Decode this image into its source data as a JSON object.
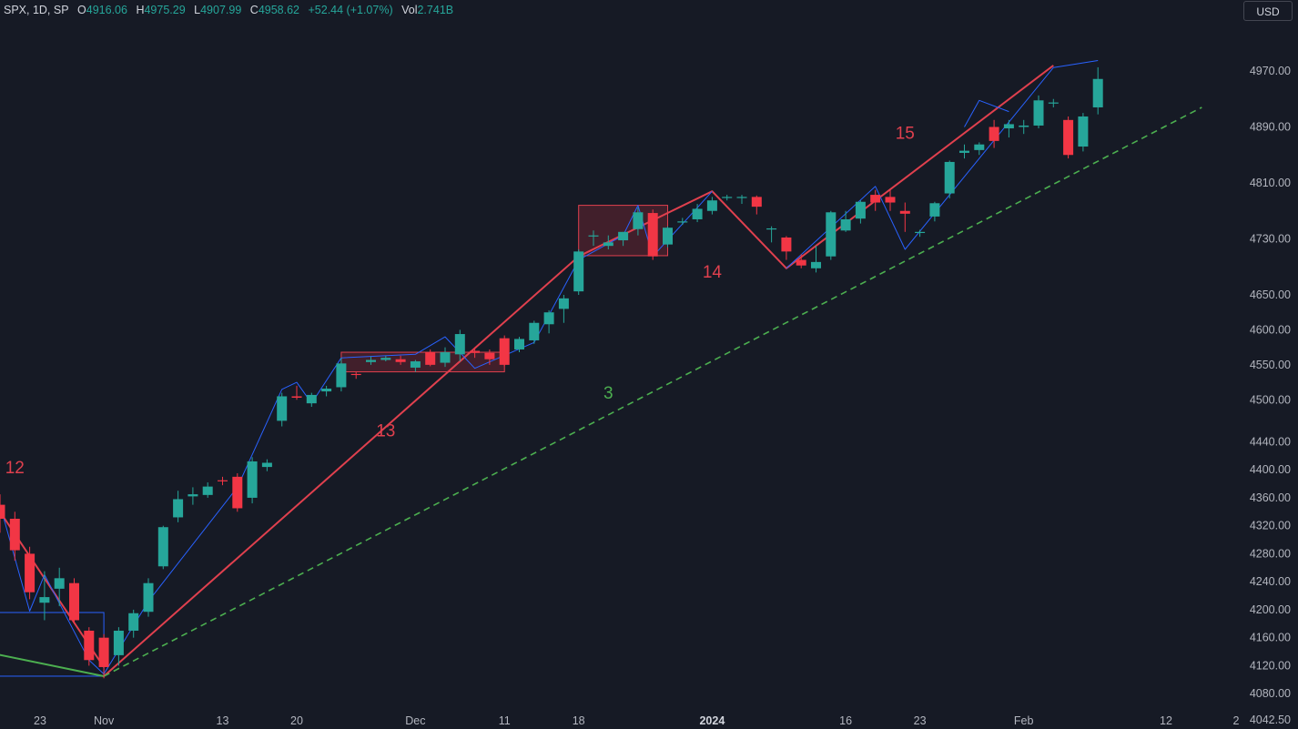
{
  "header": {
    "symbol_line": "SPX, 1D, SP",
    "open_label": "O",
    "open_value": "4916.06",
    "high_label": "H",
    "high_value": "4975.29",
    "low_label": "L",
    "low_value": "4907.99",
    "close_label": "C",
    "close_value": "4958.62",
    "change": "+52.44 (+1.07%)",
    "vol_label": "Vol",
    "vol_value": "2.741B",
    "currency_button": "USD"
  },
  "colors": {
    "background": "#161a25",
    "up": "#26a69a",
    "down": "#f23645",
    "trend_red": "#e0404e",
    "trend_blue": "#2962ff",
    "trend_green": "#4caf50",
    "text": "#b2b5be"
  },
  "chart_data": {
    "type": "candlestick",
    "title": "SPX, 1D, SP",
    "ylim": [
      4030,
      5000
    ],
    "y_ticks": [
      {
        "label": "4970.00",
        "v": 4970
      },
      {
        "label": "4890.00",
        "v": 4890
      },
      {
        "label": "4810.00",
        "v": 4810
      },
      {
        "label": "4730.00",
        "v": 4730
      },
      {
        "label": "4650.00",
        "v": 4650
      },
      {
        "label": "4600.00",
        "v": 4600
      },
      {
        "label": "4550.00",
        "v": 4550
      },
      {
        "label": "4500.00",
        "v": 4500
      },
      {
        "label": "4440.00",
        "v": 4440
      },
      {
        "label": "4400.00",
        "v": 4400
      },
      {
        "label": "4360.00",
        "v": 4360
      },
      {
        "label": "4320.00",
        "v": 4320
      },
      {
        "label": "4280.00",
        "v": 4280
      },
      {
        "label": "4240.00",
        "v": 4240
      },
      {
        "label": "4200.00",
        "v": 4200
      },
      {
        "label": "4160.00",
        "v": 4160
      },
      {
        "label": "4120.00",
        "v": 4120
      },
      {
        "label": "4080.00",
        "v": 4080
      },
      {
        "label": "4042.50",
        "v": 4042.5
      }
    ],
    "x_ticks": [
      {
        "label": "23",
        "i": 0
      },
      {
        "label": "Nov",
        "i": 7
      },
      {
        "label": "13",
        "i": 15
      },
      {
        "label": "20",
        "i": 20
      },
      {
        "label": "Dec",
        "i": 28
      },
      {
        "label": "11",
        "i": 34
      },
      {
        "label": "18",
        "i": 39
      },
      {
        "label": "2024",
        "i": 48,
        "bold": true
      },
      {
        "label": "16",
        "i": 57
      },
      {
        "label": "23",
        "i": 62
      },
      {
        "label": "Feb",
        "i": 69
      },
      {
        "label": "12",
        "i": 76
      },
      {
        "label": "2",
        "i": 81
      }
    ],
    "candles": [
      {
        "o": 4350,
        "h": 4365,
        "l": 4310,
        "c": 4330
      },
      {
        "o": 4330,
        "h": 4340,
        "l": 4270,
        "c": 4285
      },
      {
        "o": 4280,
        "h": 4290,
        "l": 4215,
        "c": 4225
      },
      {
        "o": 4210,
        "h": 4255,
        "l": 4185,
        "c": 4218
      },
      {
        "o": 4230,
        "h": 4260,
        "l": 4205,
        "c": 4245
      },
      {
        "o": 4238,
        "h": 4245,
        "l": 4180,
        "c": 4185
      },
      {
        "o": 4170,
        "h": 4175,
        "l": 4120,
        "c": 4128
      },
      {
        "o": 4160,
        "h": 4165,
        "l": 4102,
        "c": 4118
      },
      {
        "o": 4135,
        "h": 4175,
        "l": 4120,
        "c": 4170
      },
      {
        "o": 4170,
        "h": 4200,
        "l": 4160,
        "c": 4195
      },
      {
        "o": 4197,
        "h": 4245,
        "l": 4190,
        "c": 4238
      },
      {
        "o": 4262,
        "h": 4320,
        "l": 4258,
        "c": 4318
      },
      {
        "o": 4332,
        "h": 4370,
        "l": 4325,
        "c": 4358
      },
      {
        "o": 4362,
        "h": 4375,
        "l": 4350,
        "c": 4365
      },
      {
        "o": 4364,
        "h": 4382,
        "l": 4360,
        "c": 4376
      },
      {
        "o": 4385,
        "h": 4390,
        "l": 4378,
        "c": 4384
      },
      {
        "o": 4390,
        "h": 4395,
        "l": 4340,
        "c": 4345
      },
      {
        "o": 4360,
        "h": 4418,
        "l": 4352,
        "c": 4412
      },
      {
        "o": 4404,
        "h": 4415,
        "l": 4398,
        "c": 4410
      },
      {
        "o": 4470,
        "h": 4510,
        "l": 4462,
        "c": 4505
      },
      {
        "o": 4505,
        "h": 4520,
        "l": 4500,
        "c": 4503
      },
      {
        "o": 4495,
        "h": 4510,
        "l": 4490,
        "c": 4507
      },
      {
        "o": 4512,
        "h": 4520,
        "l": 4505,
        "c": 4516
      },
      {
        "o": 4518,
        "h": 4560,
        "l": 4512,
        "c": 4552
      },
      {
        "o": 4537,
        "h": 4540,
        "l": 4530,
        "c": 4536
      },
      {
        "o": 4554,
        "h": 4562,
        "l": 4550,
        "c": 4557
      },
      {
        "o": 4557,
        "h": 4563,
        "l": 4555,
        "c": 4560
      },
      {
        "o": 4558,
        "h": 4563,
        "l": 4550,
        "c": 4554
      },
      {
        "o": 4546,
        "h": 4557,
        "l": 4540,
        "c": 4555
      },
      {
        "o": 4568,
        "h": 4572,
        "l": 4548,
        "c": 4550
      },
      {
        "o": 4553,
        "h": 4575,
        "l": 4547,
        "c": 4568
      },
      {
        "o": 4565,
        "h": 4600,
        "l": 4555,
        "c": 4594
      },
      {
        "o": 4570,
        "h": 4575,
        "l": 4560,
        "c": 4567
      },
      {
        "o": 4567,
        "h": 4572,
        "l": 4550,
        "c": 4558
      },
      {
        "o": 4588,
        "h": 4592,
        "l": 4548,
        "c": 4550
      },
      {
        "o": 4572,
        "h": 4590,
        "l": 4568,
        "c": 4587
      },
      {
        "o": 4585,
        "h": 4613,
        "l": 4580,
        "c": 4610
      },
      {
        "o": 4608,
        "h": 4628,
        "l": 4595,
        "c": 4625
      },
      {
        "o": 4630,
        "h": 4650,
        "l": 4610,
        "c": 4645
      },
      {
        "o": 4655,
        "h": 4715,
        "l": 4650,
        "c": 4712
      },
      {
        "o": 4734,
        "h": 4742,
        "l": 4720,
        "c": 4735
      },
      {
        "o": 4720,
        "h": 4735,
        "l": 4715,
        "c": 4725
      },
      {
        "o": 4728,
        "h": 4740,
        "l": 4720,
        "c": 4740
      },
      {
        "o": 4744,
        "h": 4775,
        "l": 4735,
        "c": 4768
      },
      {
        "o": 4767,
        "h": 4772,
        "l": 4700,
        "c": 4705
      },
      {
        "o": 4722,
        "h": 4748,
        "l": 4718,
        "c": 4746
      },
      {
        "o": 4754,
        "h": 4760,
        "l": 4750,
        "c": 4755
      },
      {
        "o": 4758,
        "h": 4780,
        "l": 4754,
        "c": 4773
      },
      {
        "o": 4770,
        "h": 4790,
        "l": 4765,
        "c": 4785
      },
      {
        "o": 4789,
        "h": 4793,
        "l": 4785,
        "c": 4790
      },
      {
        "o": 4789,
        "h": 4793,
        "l": 4780,
        "c": 4790
      },
      {
        "o": 4790,
        "h": 4792,
        "l": 4765,
        "c": 4776
      },
      {
        "o": 4745,
        "h": 4748,
        "l": 4725,
        "c": 4745
      },
      {
        "o": 4732,
        "h": 4734,
        "l": 4700,
        "c": 4712
      },
      {
        "o": 4700,
        "h": 4708,
        "l": 4688,
        "c": 4692
      },
      {
        "o": 4688,
        "h": 4720,
        "l": 4682,
        "c": 4697
      },
      {
        "o": 4705,
        "h": 4770,
        "l": 4700,
        "c": 4768
      },
      {
        "o": 4742,
        "h": 4770,
        "l": 4740,
        "c": 4758
      },
      {
        "o": 4759,
        "h": 4785,
        "l": 4752,
        "c": 4783
      },
      {
        "o": 4793,
        "h": 4800,
        "l": 4770,
        "c": 4782
      },
      {
        "o": 4790,
        "h": 4800,
        "l": 4770,
        "c": 4782
      },
      {
        "o": 4770,
        "h": 4782,
        "l": 4740,
        "c": 4766
      },
      {
        "o": 4740,
        "h": 4743,
        "l": 4733,
        "c": 4740
      },
      {
        "o": 4762,
        "h": 4783,
        "l": 4755,
        "c": 4781
      },
      {
        "o": 4795,
        "h": 4842,
        "l": 4788,
        "c": 4840
      },
      {
        "o": 4853,
        "h": 4865,
        "l": 4845,
        "c": 4856
      },
      {
        "o": 4857,
        "h": 4868,
        "l": 4850,
        "c": 4865
      },
      {
        "o": 4890,
        "h": 4900,
        "l": 4860,
        "c": 4870
      },
      {
        "o": 4888,
        "h": 4900,
        "l": 4875,
        "c": 4894
      },
      {
        "o": 4890,
        "h": 4900,
        "l": 4880,
        "c": 4892
      },
      {
        "o": 4892,
        "h": 4935,
        "l": 4888,
        "c": 4928
      },
      {
        "o": 4925,
        "h": 4930,
        "l": 4918,
        "c": 4925
      },
      {
        "o": 4900,
        "h": 4905,
        "l": 4845,
        "c": 4850
      },
      {
        "o": 4862,
        "h": 4910,
        "l": 4855,
        "c": 4905
      },
      {
        "o": 4918,
        "h": 4975.29,
        "l": 4908,
        "c": 4958.62
      }
    ],
    "patterns": [
      {
        "color": "red",
        "points": [
          [
            0,
            4340
          ],
          [
            7,
            4118
          ]
        ],
        "style": "solid",
        "width": 2
      },
      {
        "color": "red",
        "points": [
          [
            7,
            4105
          ],
          [
            39,
            4705
          ],
          [
            48,
            4798
          ],
          [
            53,
            4688
          ],
          [
            71,
            4978
          ]
        ],
        "style": "solid",
        "width": 2
      },
      {
        "color": "green",
        "points": [
          [
            -8,
            4170
          ],
          [
            7,
            4105
          ]
        ],
        "style": "solid",
        "width": 2
      },
      {
        "color": "green",
        "points": [
          [
            7,
            4105
          ],
          [
            81,
            4918
          ]
        ],
        "style": "dashed",
        "width": 1.6
      },
      {
        "color": "blue",
        "points": [
          [
            0,
            4350
          ],
          [
            2,
            4198
          ],
          [
            3,
            4250
          ],
          [
            6,
            4128
          ],
          [
            7,
            4108
          ],
          [
            10,
            4212
          ],
          [
            16,
            4375
          ],
          [
            19,
            4515
          ],
          [
            20,
            4525
          ],
          [
            21,
            4495
          ],
          [
            23,
            4560
          ]
        ],
        "style": "solid",
        "width": 1
      },
      {
        "color": "blue",
        "points": [
          [
            23,
            4560
          ],
          [
            28,
            4565
          ],
          [
            30,
            4590
          ],
          [
            32,
            4545
          ],
          [
            36,
            4582
          ],
          [
            39,
            4700
          ],
          [
            42,
            4735
          ],
          [
            43,
            4778
          ],
          [
            44,
            4705
          ],
          [
            48,
            4798
          ]
        ],
        "style": "solid",
        "width": 1
      },
      {
        "color": "blue",
        "points": [
          [
            53,
            4688
          ],
          [
            59,
            4805
          ],
          [
            61,
            4715
          ],
          [
            71,
            4975
          ],
          [
            74,
            4985
          ]
        ],
        "style": "solid",
        "width": 1
      },
      {
        "color": "blue",
        "points": [
          [
            65,
            4890
          ],
          [
            66,
            4928
          ],
          [
            68,
            4912
          ]
        ],
        "style": "solid",
        "width": 1
      }
    ],
    "boxes": [
      {
        "color": "red",
        "x0": 23,
        "x1": 34,
        "y0": 4540,
        "y1": 4568
      },
      {
        "color": "red",
        "x0": 39,
        "x1": 45,
        "y0": 4706,
        "y1": 4778
      },
      {
        "color": "blue",
        "x0": -8,
        "x1": 7,
        "y0": 4105,
        "y1": 4196
      }
    ],
    "wave_labels": [
      {
        "text": "12",
        "i": 1,
        "v": 4395,
        "color": "red",
        "size": "small"
      },
      {
        "text": "13",
        "i": 26,
        "v": 4448,
        "color": "red",
        "size": "large"
      },
      {
        "text": "3",
        "i": 41,
        "v": 4502,
        "color": "green",
        "size": "large"
      },
      {
        "text": "14",
        "i": 48,
        "v": 4675,
        "color": "red",
        "size": "large"
      },
      {
        "text": "15",
        "i": 61,
        "v": 4873,
        "color": "red",
        "size": "large"
      }
    ]
  }
}
